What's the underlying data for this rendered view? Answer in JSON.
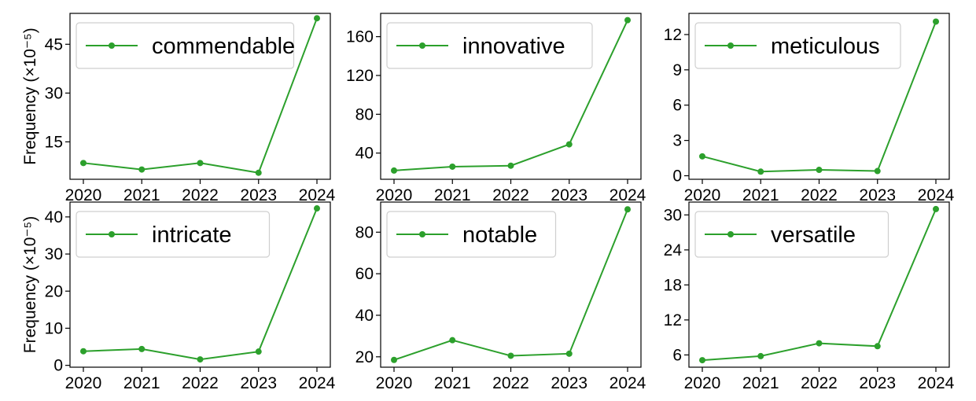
{
  "chart_data": [
    {
      "type": "line",
      "categories": [
        "2020",
        "2021",
        "2022",
        "2023",
        "2024"
      ],
      "series": [
        {
          "name": "commendable",
          "values": [
            8.5,
            6.5,
            8.5,
            5.5,
            53
          ]
        }
      ],
      "ylabel": "Frequency (×10⁻⁵)",
      "ylim": [
        3.5,
        54.5
      ],
      "yticks": [
        15,
        30,
        45
      ],
      "color": "#2ca02c",
      "legend": "top-left",
      "grid": false
    },
    {
      "type": "line",
      "categories": [
        "2020",
        "2021",
        "2022",
        "2023",
        "2024"
      ],
      "series": [
        {
          "name": "innovative",
          "values": [
            22,
            26,
            27,
            49,
            177
          ]
        }
      ],
      "ylabel": "",
      "ylim": [
        13,
        184
      ],
      "yticks": [
        40,
        80,
        120,
        160
      ],
      "color": "#2ca02c",
      "legend": "top-left",
      "grid": false
    },
    {
      "type": "line",
      "categories": [
        "2020",
        "2021",
        "2022",
        "2023",
        "2024"
      ],
      "series": [
        {
          "name": "meticulous",
          "values": [
            1.65,
            0.35,
            0.5,
            0.4,
            13.1
          ]
        }
      ],
      "ylabel": "",
      "ylim": [
        -0.3,
        13.8
      ],
      "yticks": [
        0,
        3,
        6,
        9,
        12
      ],
      "color": "#2ca02c",
      "legend": "top-left",
      "grid": false
    },
    {
      "type": "line",
      "categories": [
        "2020",
        "2021",
        "2022",
        "2023",
        "2024"
      ],
      "series": [
        {
          "name": "intricate",
          "values": [
            3.8,
            4.4,
            1.6,
            3.7,
            42.3
          ]
        }
      ],
      "ylabel": "Frequency (×10⁻⁵)",
      "ylim": [
        -0.5,
        44
      ],
      "yticks": [
        0,
        10,
        20,
        30,
        40
      ],
      "color": "#2ca02c",
      "legend": "top-left",
      "grid": false
    },
    {
      "type": "line",
      "categories": [
        "2020",
        "2021",
        "2022",
        "2023",
        "2024"
      ],
      "series": [
        {
          "name": "notable",
          "values": [
            18.5,
            28,
            20.5,
            21.5,
            91
          ]
        }
      ],
      "ylabel": "",
      "ylim": [
        15,
        94.5
      ],
      "yticks": [
        20,
        40,
        60,
        80
      ],
      "color": "#2ca02c",
      "legend": "top-left",
      "grid": false
    },
    {
      "type": "line",
      "categories": [
        "2020",
        "2021",
        "2022",
        "2023",
        "2024"
      ],
      "series": [
        {
          "name": "versatile",
          "values": [
            5.1,
            5.8,
            8,
            7.5,
            31
          ]
        }
      ],
      "ylabel": "",
      "ylim": [
        3.9,
        32.2
      ],
      "yticks": [
        6,
        12,
        18,
        24,
        30
      ],
      "color": "#2ca02c",
      "legend": "top-left",
      "grid": false
    }
  ]
}
